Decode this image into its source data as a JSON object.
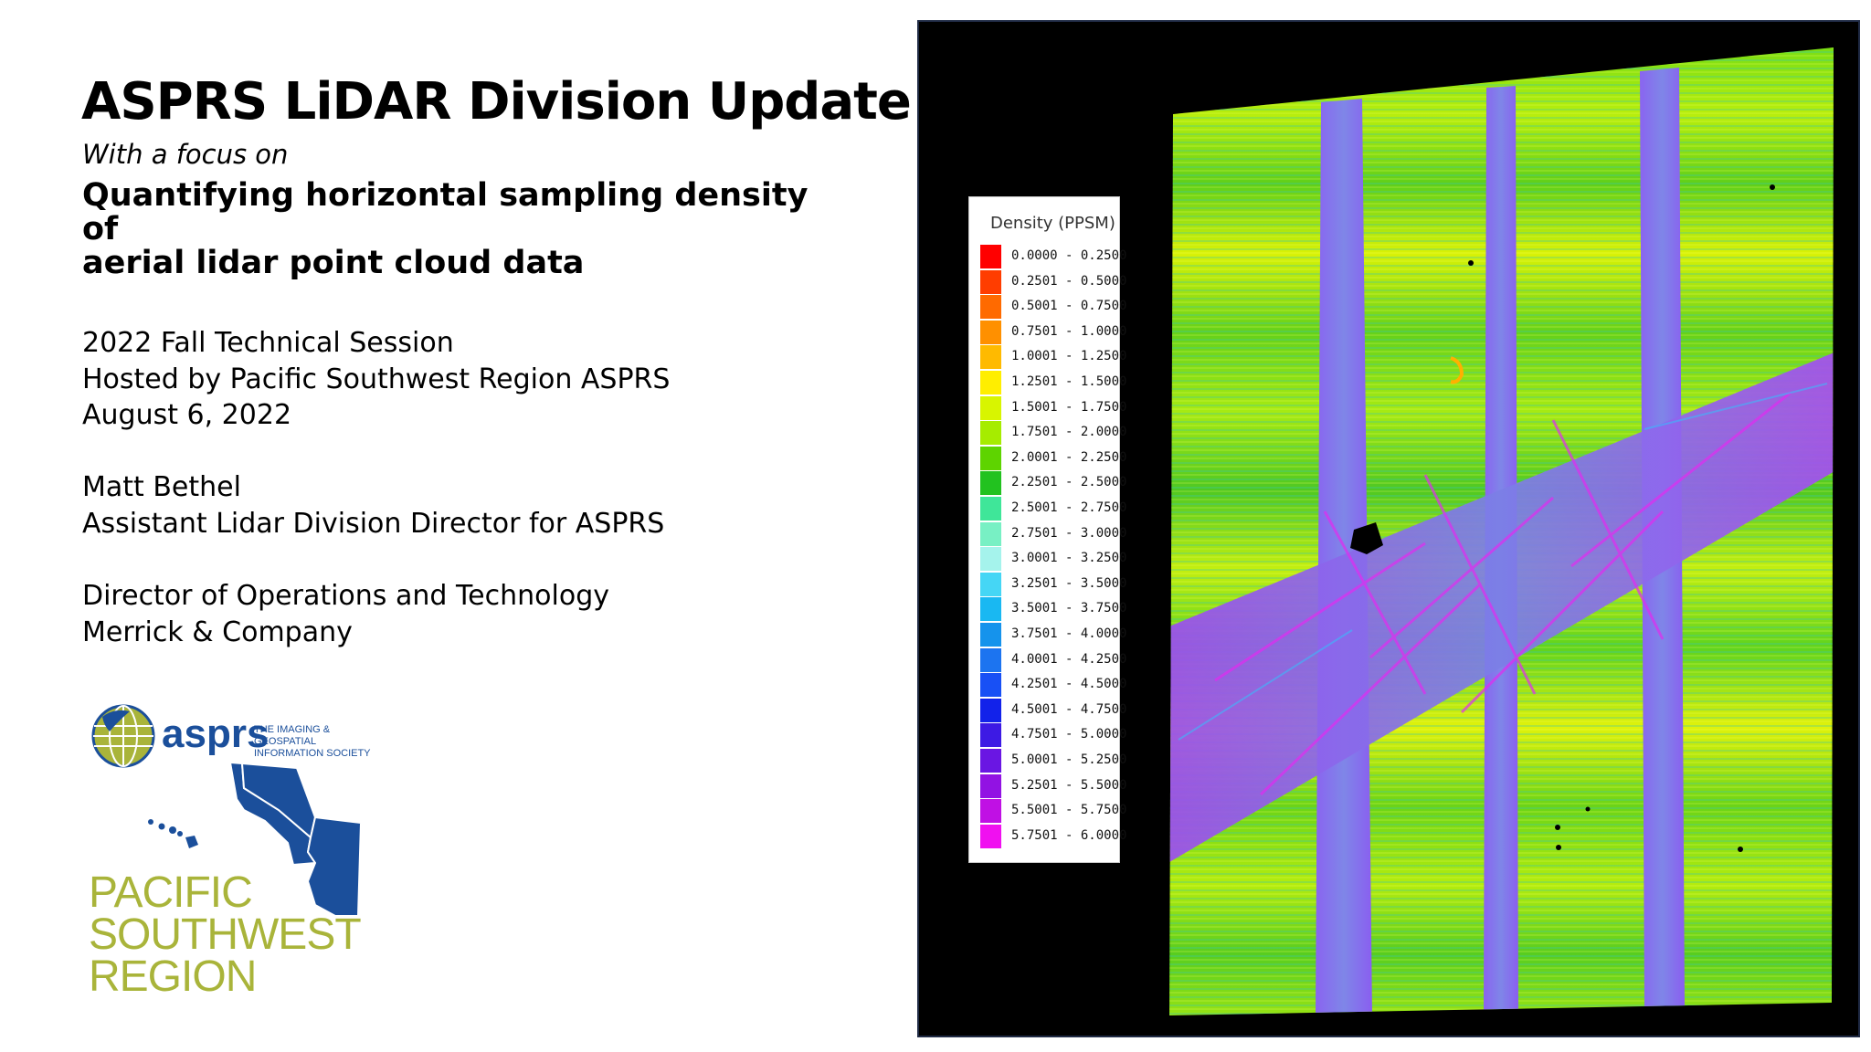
{
  "slide": {
    "title": "ASPRS LiDAR Division Update",
    "kicker": "With a focus on",
    "subtitle_line1": "Quantifying horizontal sampling density of",
    "subtitle_line2": "aerial lidar point cloud data",
    "event": [
      "2022 Fall Technical Session",
      "Hosted by Pacific Southwest Region ASPRS",
      "August 6, 2022"
    ],
    "speaker": [
      "Matt Bethel",
      "Assistant Lidar Division Director for ASPRS"
    ],
    "affiliation": [
      "Director of Operations and Technology",
      "Merrick & Company"
    ]
  },
  "logo": {
    "wordmark": "asprs",
    "tagline_line1": "THE IMAGING & GEOSPATIAL",
    "tagline_line2": "INFORMATION SOCIETY",
    "region": [
      "PACIFIC",
      "SOUTHWEST",
      "REGION"
    ],
    "brand_blue": "#1b4f9b",
    "brand_green": "#a9b43a"
  },
  "map_legend": {
    "title": "Density (PPSM)",
    "classes": [
      {
        "label": "0.0000 - 0.2500",
        "color": "#ff0000"
      },
      {
        "label": "0.2501 - 0.5000",
        "color": "#ff3d00"
      },
      {
        "label": "0.5001 - 0.7500",
        "color": "#ff6a00"
      },
      {
        "label": "0.7501 - 1.0000",
        "color": "#ff9000"
      },
      {
        "label": "1.0001 - 1.2500",
        "color": "#ffba00"
      },
      {
        "label": "1.2501 - 1.5000",
        "color": "#ffee00"
      },
      {
        "label": "1.5001 - 1.7500",
        "color": "#d8f500"
      },
      {
        "label": "1.7501 - 2.0000",
        "color": "#a6ec00"
      },
      {
        "label": "2.0001 - 2.2500",
        "color": "#5ed400"
      },
      {
        "label": "2.2501 - 2.5000",
        "color": "#22c21f"
      },
      {
        "label": "2.5001 - 2.7500",
        "color": "#3fe699"
      },
      {
        "label": "2.7501 - 3.0000",
        "color": "#78f0c4"
      },
      {
        "label": "3.0001 - 3.2500",
        "color": "#a5f3ec"
      },
      {
        "label": "3.2501 - 3.5000",
        "color": "#45d6f5"
      },
      {
        "label": "3.5001 - 3.7500",
        "color": "#19b8f2"
      },
      {
        "label": "3.7501 - 4.0000",
        "color": "#1593ec"
      },
      {
        "label": "4.0001 - 4.2500",
        "color": "#1c74f0"
      },
      {
        "label": "4.2501 - 4.5000",
        "color": "#1850f5"
      },
      {
        "label": "4.5001 - 4.7500",
        "color": "#1222ea"
      },
      {
        "label": "4.7501 - 5.0000",
        "color": "#3d1ae4"
      },
      {
        "label": "5.0001 - 5.2500",
        "color": "#6a16e3"
      },
      {
        "label": "5.2501 - 5.5000",
        "color": "#9212e3"
      },
      {
        "label": "5.5001 - 5.7500",
        "color": "#c010e4"
      },
      {
        "label": "5.7501 - 6.0000",
        "color": "#f010f0"
      }
    ]
  }
}
